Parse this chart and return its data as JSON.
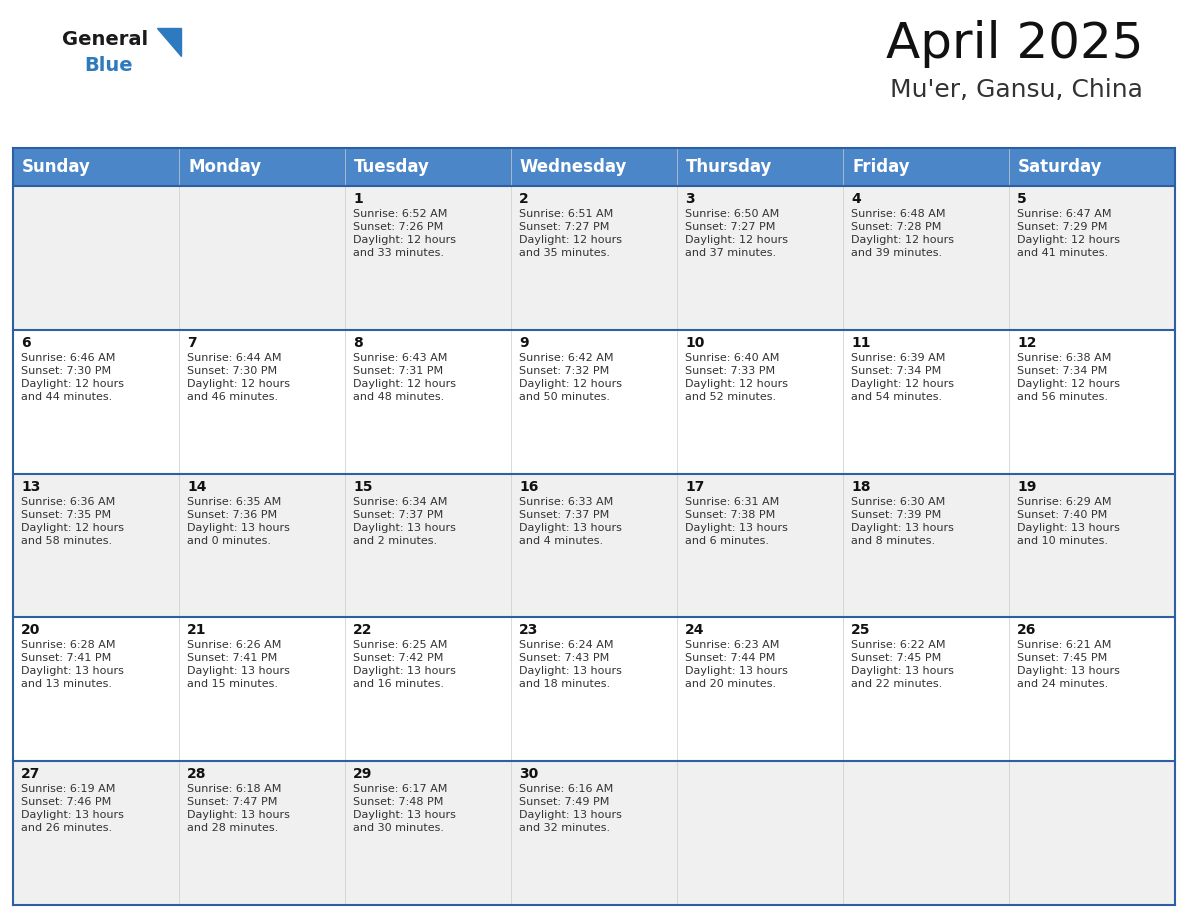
{
  "title": "April 2025",
  "subtitle": "Mu'er, Gansu, China",
  "header_bg": "#4a86c8",
  "header_text_color": "#ffffff",
  "cell_bg_odd": "#f0f0f0",
  "cell_bg_even": "#ffffff",
  "border_color": "#2e5fa3",
  "text_color": "#333333",
  "days_of_week": [
    "Sunday",
    "Monday",
    "Tuesday",
    "Wednesday",
    "Thursday",
    "Friday",
    "Saturday"
  ],
  "weeks": [
    [
      {
        "day": null,
        "text": ""
      },
      {
        "day": null,
        "text": ""
      },
      {
        "day": 1,
        "sunrise": "Sunrise: 6:52 AM",
        "sunset": "Sunset: 7:26 PM",
        "daylight": "Daylight: 12 hours",
        "daylight2": "and 33 minutes."
      },
      {
        "day": 2,
        "sunrise": "Sunrise: 6:51 AM",
        "sunset": "Sunset: 7:27 PM",
        "daylight": "Daylight: 12 hours",
        "daylight2": "and 35 minutes."
      },
      {
        "day": 3,
        "sunrise": "Sunrise: 6:50 AM",
        "sunset": "Sunset: 7:27 PM",
        "daylight": "Daylight: 12 hours",
        "daylight2": "and 37 minutes."
      },
      {
        "day": 4,
        "sunrise": "Sunrise: 6:48 AM",
        "sunset": "Sunset: 7:28 PM",
        "daylight": "Daylight: 12 hours",
        "daylight2": "and 39 minutes."
      },
      {
        "day": 5,
        "sunrise": "Sunrise: 6:47 AM",
        "sunset": "Sunset: 7:29 PM",
        "daylight": "Daylight: 12 hours",
        "daylight2": "and 41 minutes."
      }
    ],
    [
      {
        "day": 6,
        "sunrise": "Sunrise: 6:46 AM",
        "sunset": "Sunset: 7:30 PM",
        "daylight": "Daylight: 12 hours",
        "daylight2": "and 44 minutes."
      },
      {
        "day": 7,
        "sunrise": "Sunrise: 6:44 AM",
        "sunset": "Sunset: 7:30 PM",
        "daylight": "Daylight: 12 hours",
        "daylight2": "and 46 minutes."
      },
      {
        "day": 8,
        "sunrise": "Sunrise: 6:43 AM",
        "sunset": "Sunset: 7:31 PM",
        "daylight": "Daylight: 12 hours",
        "daylight2": "and 48 minutes."
      },
      {
        "day": 9,
        "sunrise": "Sunrise: 6:42 AM",
        "sunset": "Sunset: 7:32 PM",
        "daylight": "Daylight: 12 hours",
        "daylight2": "and 50 minutes."
      },
      {
        "day": 10,
        "sunrise": "Sunrise: 6:40 AM",
        "sunset": "Sunset: 7:33 PM",
        "daylight": "Daylight: 12 hours",
        "daylight2": "and 52 minutes."
      },
      {
        "day": 11,
        "sunrise": "Sunrise: 6:39 AM",
        "sunset": "Sunset: 7:34 PM",
        "daylight": "Daylight: 12 hours",
        "daylight2": "and 54 minutes."
      },
      {
        "day": 12,
        "sunrise": "Sunrise: 6:38 AM",
        "sunset": "Sunset: 7:34 PM",
        "daylight": "Daylight: 12 hours",
        "daylight2": "and 56 minutes."
      }
    ],
    [
      {
        "day": 13,
        "sunrise": "Sunrise: 6:36 AM",
        "sunset": "Sunset: 7:35 PM",
        "daylight": "Daylight: 12 hours",
        "daylight2": "and 58 minutes."
      },
      {
        "day": 14,
        "sunrise": "Sunrise: 6:35 AM",
        "sunset": "Sunset: 7:36 PM",
        "daylight": "Daylight: 13 hours",
        "daylight2": "and 0 minutes."
      },
      {
        "day": 15,
        "sunrise": "Sunrise: 6:34 AM",
        "sunset": "Sunset: 7:37 PM",
        "daylight": "Daylight: 13 hours",
        "daylight2": "and 2 minutes."
      },
      {
        "day": 16,
        "sunrise": "Sunrise: 6:33 AM",
        "sunset": "Sunset: 7:37 PM",
        "daylight": "Daylight: 13 hours",
        "daylight2": "and 4 minutes."
      },
      {
        "day": 17,
        "sunrise": "Sunrise: 6:31 AM",
        "sunset": "Sunset: 7:38 PM",
        "daylight": "Daylight: 13 hours",
        "daylight2": "and 6 minutes."
      },
      {
        "day": 18,
        "sunrise": "Sunrise: 6:30 AM",
        "sunset": "Sunset: 7:39 PM",
        "daylight": "Daylight: 13 hours",
        "daylight2": "and 8 minutes."
      },
      {
        "day": 19,
        "sunrise": "Sunrise: 6:29 AM",
        "sunset": "Sunset: 7:40 PM",
        "daylight": "Daylight: 13 hours",
        "daylight2": "and 10 minutes."
      }
    ],
    [
      {
        "day": 20,
        "sunrise": "Sunrise: 6:28 AM",
        "sunset": "Sunset: 7:41 PM",
        "daylight": "Daylight: 13 hours",
        "daylight2": "and 13 minutes."
      },
      {
        "day": 21,
        "sunrise": "Sunrise: 6:26 AM",
        "sunset": "Sunset: 7:41 PM",
        "daylight": "Daylight: 13 hours",
        "daylight2": "and 15 minutes."
      },
      {
        "day": 22,
        "sunrise": "Sunrise: 6:25 AM",
        "sunset": "Sunset: 7:42 PM",
        "daylight": "Daylight: 13 hours",
        "daylight2": "and 16 minutes."
      },
      {
        "day": 23,
        "sunrise": "Sunrise: 6:24 AM",
        "sunset": "Sunset: 7:43 PM",
        "daylight": "Daylight: 13 hours",
        "daylight2": "and 18 minutes."
      },
      {
        "day": 24,
        "sunrise": "Sunrise: 6:23 AM",
        "sunset": "Sunset: 7:44 PM",
        "daylight": "Daylight: 13 hours",
        "daylight2": "and 20 minutes."
      },
      {
        "day": 25,
        "sunrise": "Sunrise: 6:22 AM",
        "sunset": "Sunset: 7:45 PM",
        "daylight": "Daylight: 13 hours",
        "daylight2": "and 22 minutes."
      },
      {
        "day": 26,
        "sunrise": "Sunrise: 6:21 AM",
        "sunset": "Sunset: 7:45 PM",
        "daylight": "Daylight: 13 hours",
        "daylight2": "and 24 minutes."
      }
    ],
    [
      {
        "day": 27,
        "sunrise": "Sunrise: 6:19 AM",
        "sunset": "Sunset: 7:46 PM",
        "daylight": "Daylight: 13 hours",
        "daylight2": "and 26 minutes."
      },
      {
        "day": 28,
        "sunrise": "Sunrise: 6:18 AM",
        "sunset": "Sunset: 7:47 PM",
        "daylight": "Daylight: 13 hours",
        "daylight2": "and 28 minutes."
      },
      {
        "day": 29,
        "sunrise": "Sunrise: 6:17 AM",
        "sunset": "Sunset: 7:48 PM",
        "daylight": "Daylight: 13 hours",
        "daylight2": "and 30 minutes."
      },
      {
        "day": 30,
        "sunrise": "Sunrise: 6:16 AM",
        "sunset": "Sunset: 7:49 PM",
        "daylight": "Daylight: 13 hours",
        "daylight2": "and 32 minutes."
      },
      {
        "day": null,
        "text": ""
      },
      {
        "day": null,
        "text": ""
      },
      {
        "day": null,
        "text": ""
      }
    ]
  ],
  "logo_general_color": "#1a1a1a",
  "logo_blue_color": "#2e7abf",
  "logo_triangle_color": "#2e7abf",
  "title_fontsize": 36,
  "subtitle_fontsize": 18,
  "header_fontsize": 12,
  "day_num_fontsize": 10,
  "cell_text_fontsize": 8
}
